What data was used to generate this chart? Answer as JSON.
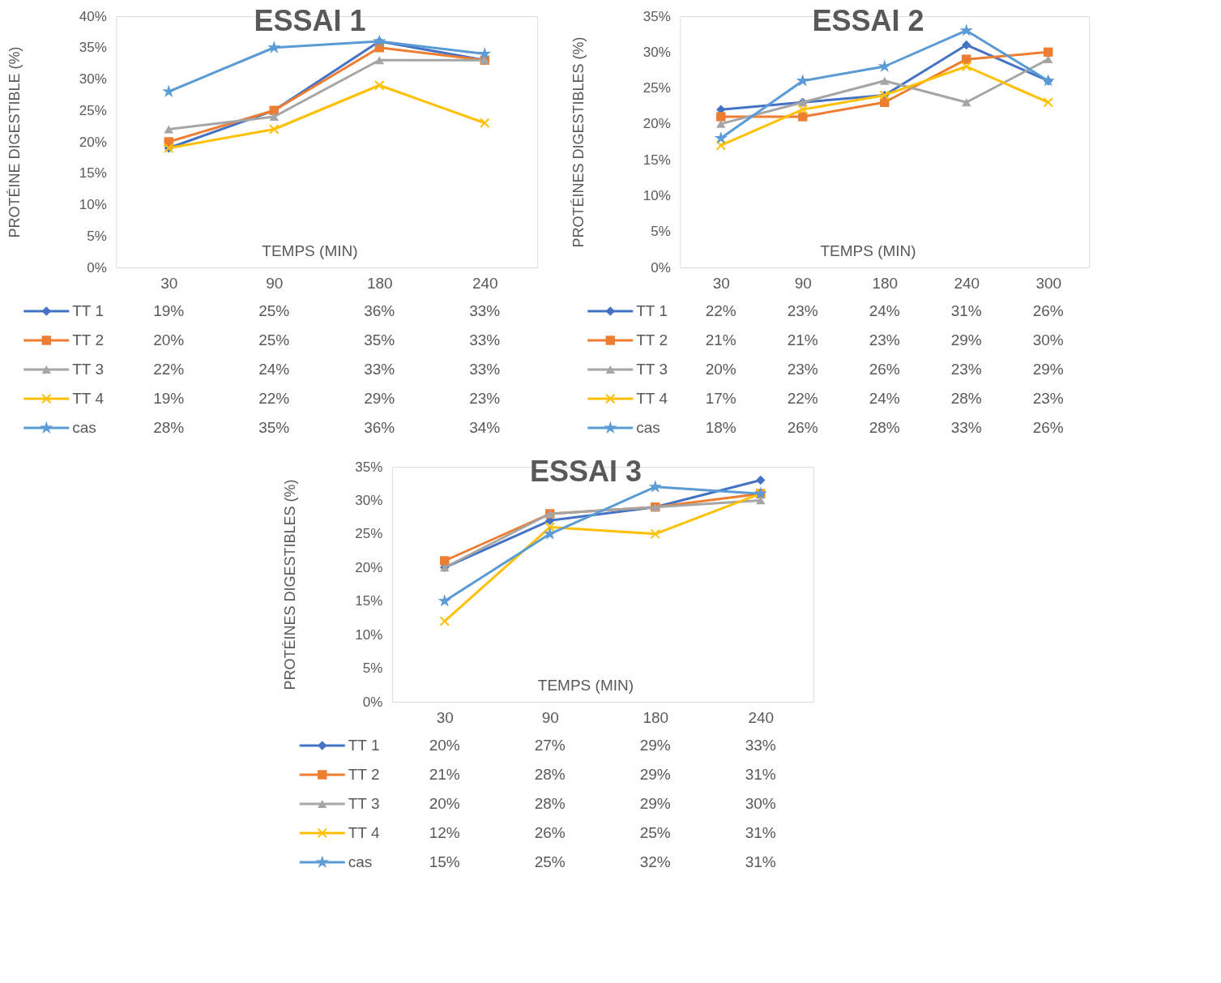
{
  "chart_data": [
    {
      "type": "line",
      "title": "ESSAI 1",
      "xlabel": "TEMPS (MIN)",
      "ylabel": "PROTÉINE DIGESTIBLE (%)",
      "categories": [
        "30",
        "90",
        "180",
        "240"
      ],
      "ylim": [
        0,
        40
      ],
      "yticks": [
        {
          "value": 0,
          "label": "0%"
        },
        {
          "value": 5,
          "label": "5%"
        },
        {
          "value": 10,
          "label": "10%"
        },
        {
          "value": 15,
          "label": "15%"
        },
        {
          "value": 20,
          "label": "20%"
        },
        {
          "value": 25,
          "label": "25%"
        },
        {
          "value": 30,
          "label": "30%"
        },
        {
          "value": 35,
          "label": "35%"
        },
        {
          "value": 40,
          "label": "40%"
        }
      ],
      "grid": false,
      "legend": "bottom left",
      "series": [
        {
          "name": "TT 1",
          "color": "#4472c4",
          "marker": "diamond",
          "values": [
            19,
            25,
            36,
            33
          ],
          "value_labels": [
            "19%",
            "25%",
            "36%",
            "33%"
          ]
        },
        {
          "name": "TT 2",
          "color": "#ed7d31",
          "marker": "square",
          "values": [
            20,
            25,
            35,
            33
          ],
          "value_labels": [
            "20%",
            "25%",
            "35%",
            "33%"
          ]
        },
        {
          "name": "TT 3",
          "color": "#a5a5a5",
          "marker": "triangle",
          "values": [
            22,
            24,
            33,
            33
          ],
          "value_labels": [
            "22%",
            "24%",
            "33%",
            "33%"
          ]
        },
        {
          "name": "TT 4",
          "color": "#ffc000",
          "marker": "cross",
          "values": [
            19,
            22,
            29,
            23
          ],
          "value_labels": [
            "19%",
            "22%",
            "29%",
            "23%"
          ]
        },
        {
          "name": "cas",
          "color": "#5b9bd5",
          "marker": "star",
          "values": [
            28,
            35,
            36,
            34
          ],
          "value_labels": [
            "28%",
            "35%",
            "36%",
            "34%"
          ]
        }
      ]
    },
    {
      "type": "line",
      "title": "ESSAI 2",
      "xlabel": "TEMPS (MIN)",
      "ylabel": "PROTÉINES DIGESTIBLES (%)",
      "categories": [
        "30",
        "90",
        "180",
        "240",
        "300"
      ],
      "ylim": [
        0,
        35
      ],
      "yticks": [
        {
          "value": 0,
          "label": "0%"
        },
        {
          "value": 5,
          "label": "5%"
        },
        {
          "value": 10,
          "label": "10%"
        },
        {
          "value": 15,
          "label": "15%"
        },
        {
          "value": 20,
          "label": "20%"
        },
        {
          "value": 25,
          "label": "25%"
        },
        {
          "value": 30,
          "label": "30%"
        },
        {
          "value": 35,
          "label": "35%"
        }
      ],
      "grid": false,
      "legend": "bottom left",
      "series": [
        {
          "name": "TT 1",
          "color": "#4472c4",
          "marker": "diamond",
          "values": [
            22,
            23,
            24,
            31,
            26
          ],
          "value_labels": [
            "22%",
            "23%",
            "24%",
            "31%",
            "26%"
          ]
        },
        {
          "name": "TT 2",
          "color": "#ed7d31",
          "marker": "square",
          "values": [
            21,
            21,
            23,
            29,
            30
          ],
          "value_labels": [
            "21%",
            "21%",
            "23%",
            "29%",
            "30%"
          ]
        },
        {
          "name": "TT 3",
          "color": "#a5a5a5",
          "marker": "triangle",
          "values": [
            20,
            23,
            26,
            23,
            29
          ],
          "value_labels": [
            "20%",
            "23%",
            "26%",
            "23%",
            "29%"
          ]
        },
        {
          "name": "TT 4",
          "color": "#ffc000",
          "marker": "cross",
          "values": [
            17,
            22,
            24,
            28,
            23
          ],
          "value_labels": [
            "17%",
            "22%",
            "24%",
            "28%",
            "23%"
          ]
        },
        {
          "name": "cas",
          "color": "#5b9bd5",
          "marker": "star",
          "values": [
            18,
            26,
            28,
            33,
            26
          ],
          "value_labels": [
            "18%",
            "26%",
            "28%",
            "33%",
            "26%"
          ]
        }
      ]
    },
    {
      "type": "line",
      "title": "ESSAI 3",
      "xlabel": "TEMPS (MIN)",
      "ylabel": "PROTÉINES DIGESTIBLES (%)",
      "categories": [
        "30",
        "90",
        "180",
        "240"
      ],
      "ylim": [
        0,
        35
      ],
      "yticks": [
        {
          "value": 0,
          "label": "0%"
        },
        {
          "value": 5,
          "label": "5%"
        },
        {
          "value": 10,
          "label": "10%"
        },
        {
          "value": 15,
          "label": "15%"
        },
        {
          "value": 20,
          "label": "20%"
        },
        {
          "value": 25,
          "label": "25%"
        },
        {
          "value": 30,
          "label": "30%"
        },
        {
          "value": 35,
          "label": "35%"
        }
      ],
      "grid": false,
      "legend": "bottom left",
      "series": [
        {
          "name": "TT 1",
          "color": "#4472c4",
          "marker": "diamond",
          "values": [
            20,
            27,
            29,
            33
          ],
          "value_labels": [
            "20%",
            "27%",
            "29%",
            "33%"
          ]
        },
        {
          "name": "TT 2",
          "color": "#ed7d31",
          "marker": "square",
          "values": [
            21,
            28,
            29,
            31
          ],
          "value_labels": [
            "21%",
            "28%",
            "29%",
            "31%"
          ]
        },
        {
          "name": "TT 3",
          "color": "#a5a5a5",
          "marker": "triangle",
          "values": [
            20,
            28,
            29,
            30
          ],
          "value_labels": [
            "20%",
            "28%",
            "29%",
            "30%"
          ]
        },
        {
          "name": "TT 4",
          "color": "#ffc000",
          "marker": "cross",
          "values": [
            12,
            26,
            25,
            31
          ],
          "value_labels": [
            "12%",
            "26%",
            "25%",
            "31%"
          ]
        },
        {
          "name": "cas",
          "color": "#5b9bd5",
          "marker": "star",
          "values": [
            15,
            25,
            32,
            31
          ],
          "value_labels": [
            "15%",
            "25%",
            "32%",
            "31%"
          ]
        }
      ]
    }
  ]
}
